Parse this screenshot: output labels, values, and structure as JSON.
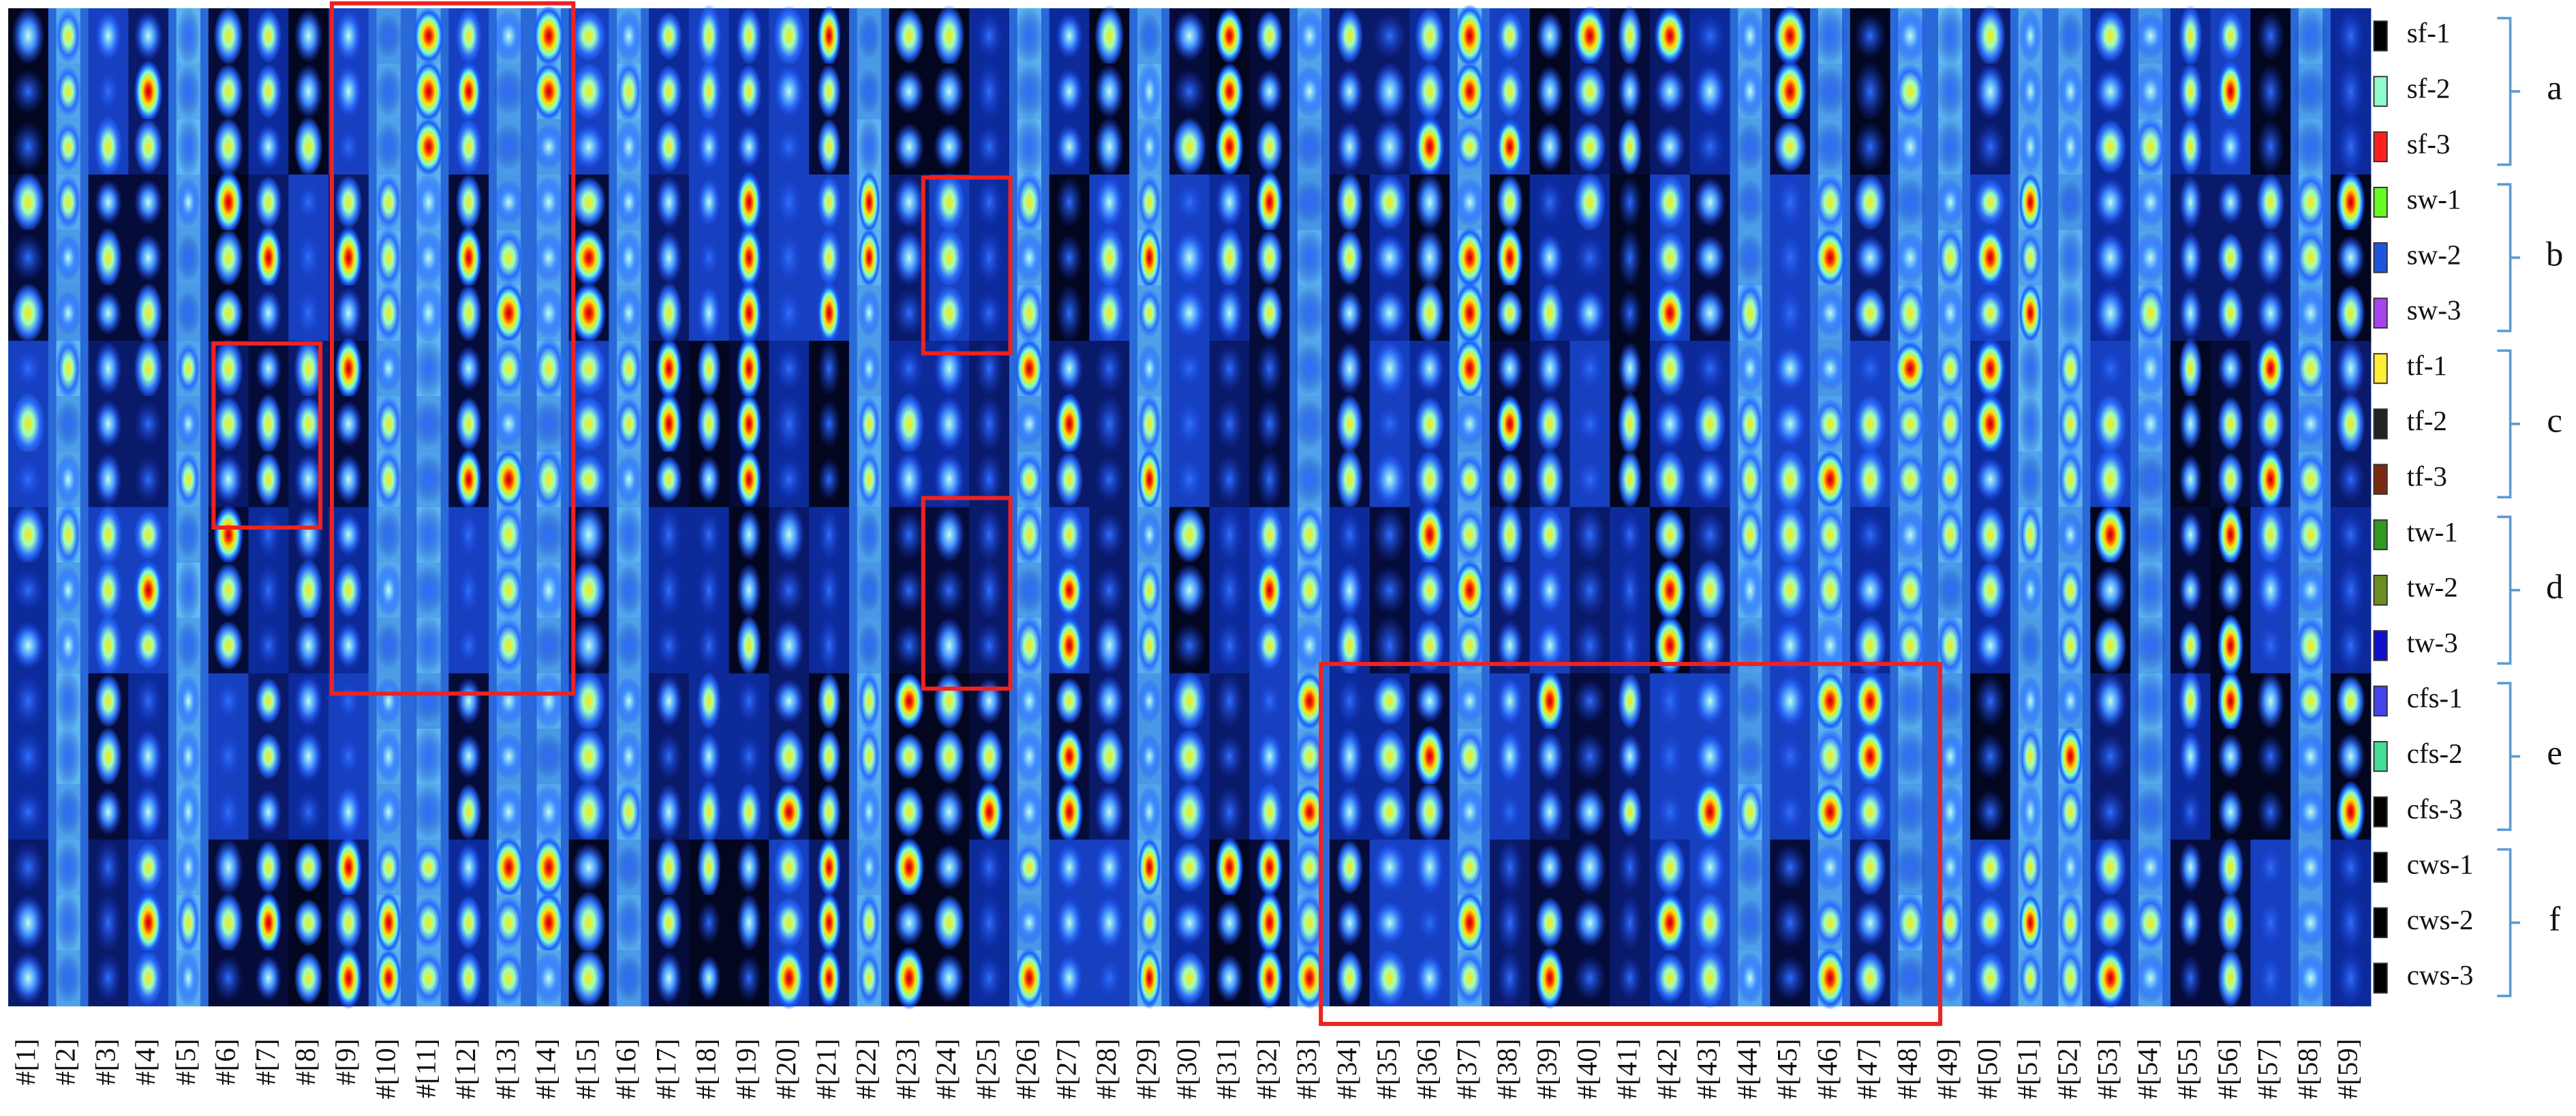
{
  "columns": [
    "#[1]",
    "#[2]",
    "#[3]",
    "#[4]",
    "#[5]",
    "#[6]",
    "#[7]",
    "#[8]",
    "#[9]",
    "#[10]",
    "#[11]",
    "#[12]",
    "#[13]",
    "#[14]",
    "#[15]",
    "#[16]",
    "#[17]",
    "#[18]",
    "#[19]",
    "#[20]",
    "#[21]",
    "#[22]",
    "#[23]",
    "#[24]",
    "#[25]",
    "#[26]",
    "#[27]",
    "#[28]",
    "#[29]",
    "#[30]",
    "#[31]",
    "#[32]",
    "#[33]",
    "#[34]",
    "#[35]",
    "#[36]",
    "#[37]",
    "#[38]",
    "#[39]",
    "#[40]",
    "#[41]",
    "#[42]",
    "#[43]",
    "#[44]",
    "#[45]",
    "#[46]",
    "#[47]",
    "#[48]",
    "#[49]",
    "#[50]",
    "#[51]",
    "#[52]",
    "#[53]",
    "#[54]",
    "#[55]",
    "#[56]",
    "#[57]",
    "#[58]",
    "#[59]"
  ],
  "rows": [
    {
      "label": "sf-1",
      "color": "#000000"
    },
    {
      "label": "sf-2",
      "color": "#8fffd0"
    },
    {
      "label": "sf-3",
      "color": "#ff2020"
    },
    {
      "label": "sw-1",
      "color": "#66ff22"
    },
    {
      "label": "sw-2",
      "color": "#1f55dd"
    },
    {
      "label": "sw-3",
      "color": "#a844ee"
    },
    {
      "label": "tf-1",
      "color": "#ffee33"
    },
    {
      "label": "tf-2",
      "color": "#222222"
    },
    {
      "label": "tf-3",
      "color": "#7a2a10"
    },
    {
      "label": "tw-1",
      "color": "#2f9922"
    },
    {
      "label": "tw-2",
      "color": "#6b8e23"
    },
    {
      "label": "tw-3",
      "color": "#1010cc"
    },
    {
      "label": "cfs-1",
      "color": "#4444ee"
    },
    {
      "label": "cfs-2",
      "color": "#44dd99"
    },
    {
      "label": "cfs-3",
      "color": "#000000"
    },
    {
      "label": "cws-1",
      "color": "#000000"
    },
    {
      "label": "cws-2",
      "color": "#000000"
    },
    {
      "label": "cws-3",
      "color": "#000000"
    }
  ],
  "groups": [
    {
      "label": "a"
    },
    {
      "label": "b"
    },
    {
      "label": "c"
    },
    {
      "label": "d"
    },
    {
      "label": "e"
    },
    {
      "label": "f"
    }
  ]
}
